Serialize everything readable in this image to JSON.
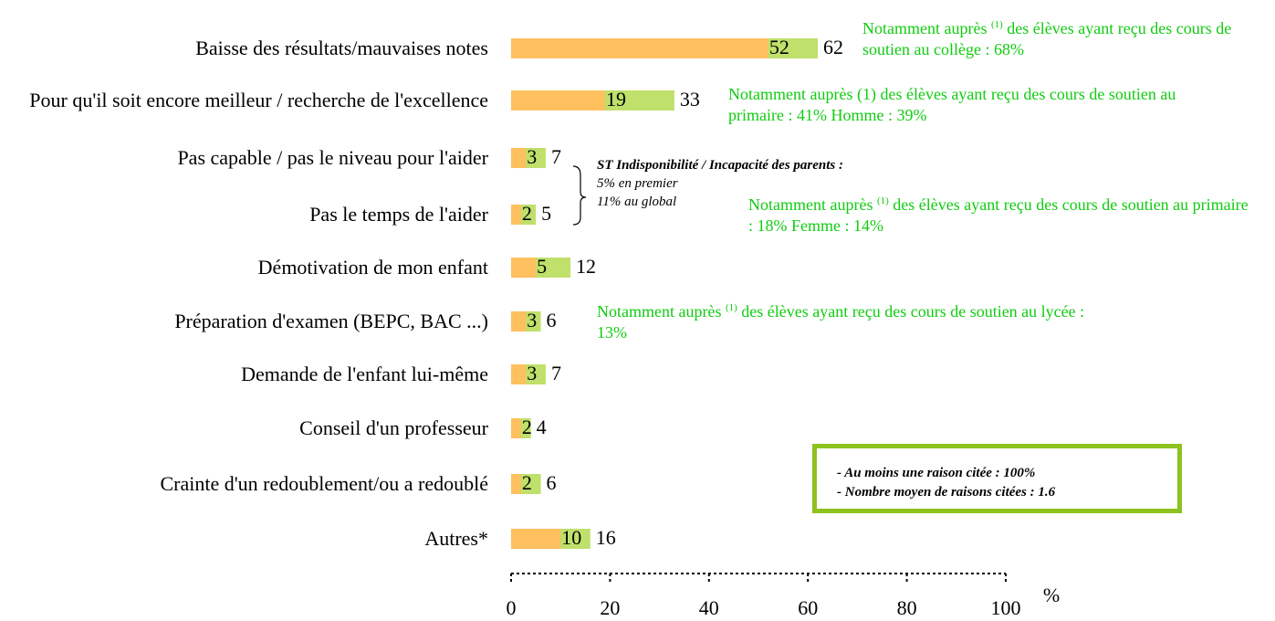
{
  "chart_data": {
    "type": "bar",
    "orientation": "horizontal",
    "categories": [
      "Baisse des résultats/mauvaises notes",
      "Pour qu'il soit encore meilleur / recherche de l'excellence",
      "Pas capable / pas le niveau pour l'aider",
      "Pas le temps de l'aider",
      "Démotivation de mon enfant",
      "Préparation d'examen (BEPC, BAC ...)",
      "Demande de l'enfant lui-même",
      "Conseil d'un professeur",
      "Crainte d'un redoublement/ou a redoublé",
      "Autres*"
    ],
    "series": [
      {
        "color": "#bfe06a",
        "values": [
          62,
          33,
          7,
          5,
          12,
          6,
          7,
          4,
          6,
          16
        ]
      },
      {
        "color": "#ffc060",
        "values": [
          52,
          19,
          3,
          2,
          5,
          3,
          3,
          2,
          2,
          10
        ]
      }
    ],
    "xlim": [
      0,
      100
    ],
    "xticks": [
      0,
      20,
      40,
      60,
      80,
      100
    ],
    "x_unit": "%",
    "annotations": [
      {
        "parts": [
          "Notamment auprès ",
          "(1)",
          " des élèves ayant reçu des cours de soutien au collège : 68%"
        ]
      },
      {
        "parts": [
          "Notamment auprès ",
          "(1)",
          " des élèves ayant reçu des cours de soutien au primaire : 41% Homme : 39%"
        ]
      },
      {
        "parts": [
          "Notamment auprès ",
          "(1)",
          " des élèves ayant reçu des cours de soutien au primaire : 18% Femme : 14%"
        ]
      },
      {
        "parts": [
          "Notamment auprès ",
          "(1)",
          " des élèves ayant reçu des cours de soutien au lycée : 13%"
        ]
      }
    ],
    "subtotal_note": [
      "ST Indisponibilité / Incapacité des parents :",
      "5% en premier",
      "11% au global"
    ],
    "summary_box": [
      "- Au moins une raison citée : 100%",
      "- Nombre moyen de raisons citées : 1.6"
    ]
  }
}
